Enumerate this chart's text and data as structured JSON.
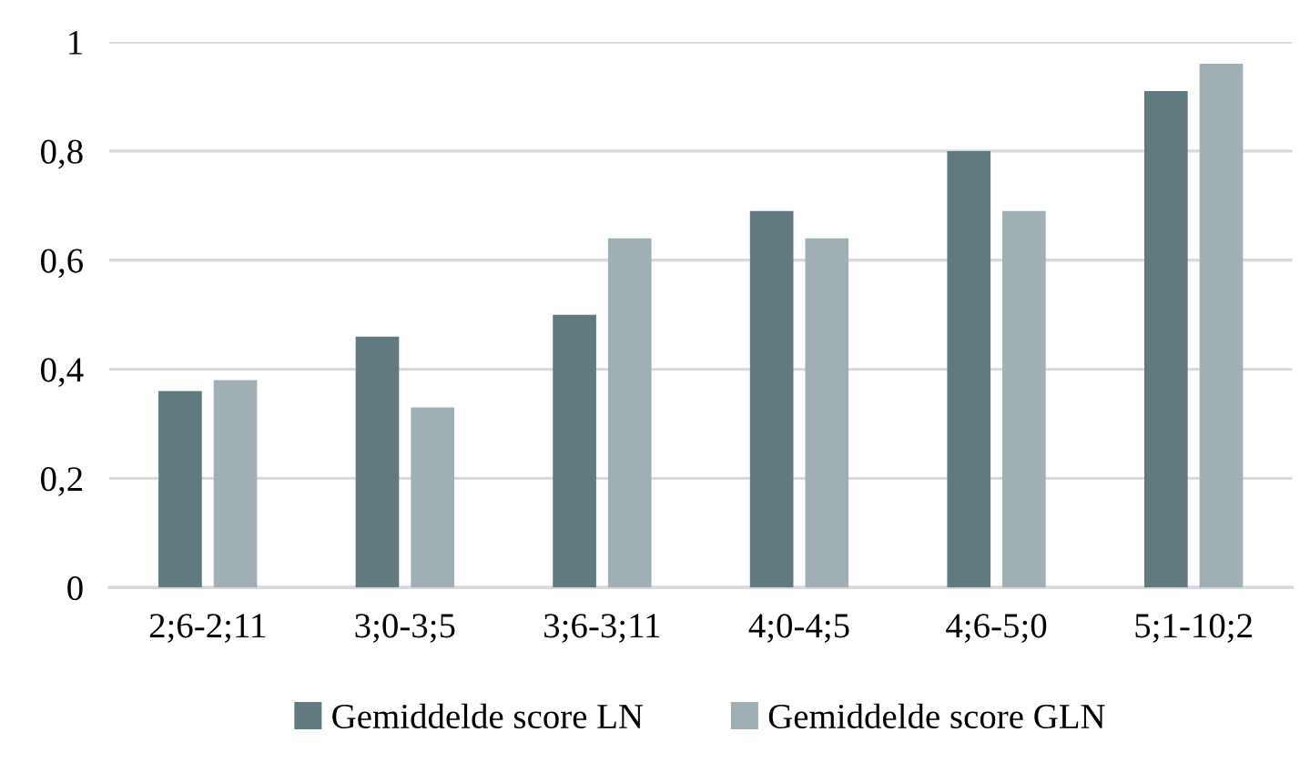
{
  "chart_data": {
    "type": "bar",
    "categories": [
      "2;6-2;11",
      "3;0-3;5",
      "3;6-3;11",
      "4;0-4;5",
      "4;6-5;0",
      "5;1-10;2"
    ],
    "series": [
      {
        "name": "Gemiddelde score LN",
        "color": "#607a80",
        "values": [
          0.36,
          0.46,
          0.5,
          0.69,
          0.8,
          0.91
        ]
      },
      {
        "name": "Gemiddelde score GLN",
        "color": "#9fafb4",
        "values": [
          0.38,
          0.33,
          0.64,
          0.64,
          0.69,
          0.96
        ]
      }
    ],
    "ylim": [
      0,
      1
    ],
    "yticks": [
      {
        "value": 0,
        "label": "0"
      },
      {
        "value": 0.2,
        "label": "0,2"
      },
      {
        "value": 0.4,
        "label": "0,4"
      },
      {
        "value": 0.6,
        "label": "0,6"
      },
      {
        "value": 0.8,
        "label": "0,8"
      },
      {
        "value": 1,
        "label": "1"
      }
    ],
    "grid": "y",
    "legend": "bottom"
  }
}
